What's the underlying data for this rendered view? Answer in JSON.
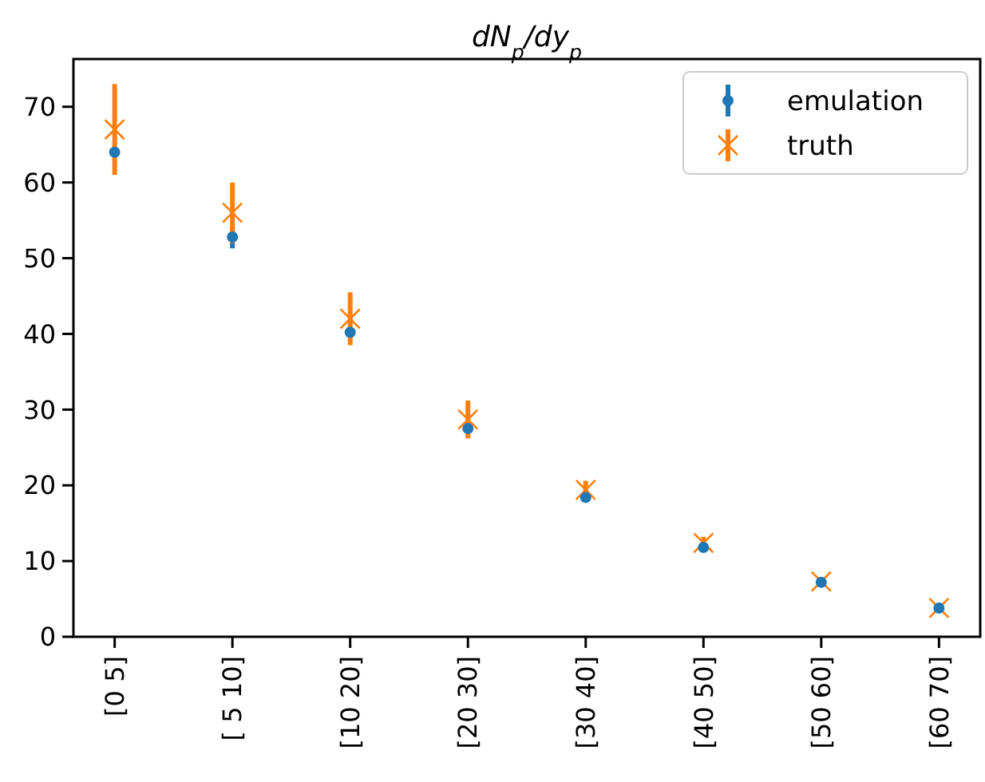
{
  "chart_data": {
    "type": "scatter",
    "title": "dN$_{p}$/dy$_{p}$",
    "categories": [
      "[0 5]",
      "[ 5 10]",
      "[10 20]",
      "[20 30]",
      "[30 40]",
      "[40 50]",
      "[50 60]",
      "[60 70]"
    ],
    "series": [
      {
        "name": "emulation",
        "color": "#1f77b4",
        "marker": "circle",
        "values": [
          64,
          52.8,
          40.2,
          27.5,
          18.4,
          11.8,
          7.2,
          3.8
        ],
        "errors": [
          null,
          1.5,
          null,
          null,
          null,
          null,
          null,
          null
        ]
      },
      {
        "name": "truth",
        "color": "#ff7f0e",
        "marker": "cross",
        "values": [
          67,
          56,
          42,
          28.7,
          19.4,
          12.4,
          7.3,
          3.8
        ],
        "errors": [
          6,
          4,
          3.5,
          2.5,
          1.2,
          0.8,
          null,
          null
        ]
      }
    ],
    "ylim": [
      0,
      76.3
    ],
    "yticks": [
      0,
      10,
      20,
      30,
      40,
      50,
      60,
      70
    ],
    "grid": false,
    "legend": "top right"
  }
}
